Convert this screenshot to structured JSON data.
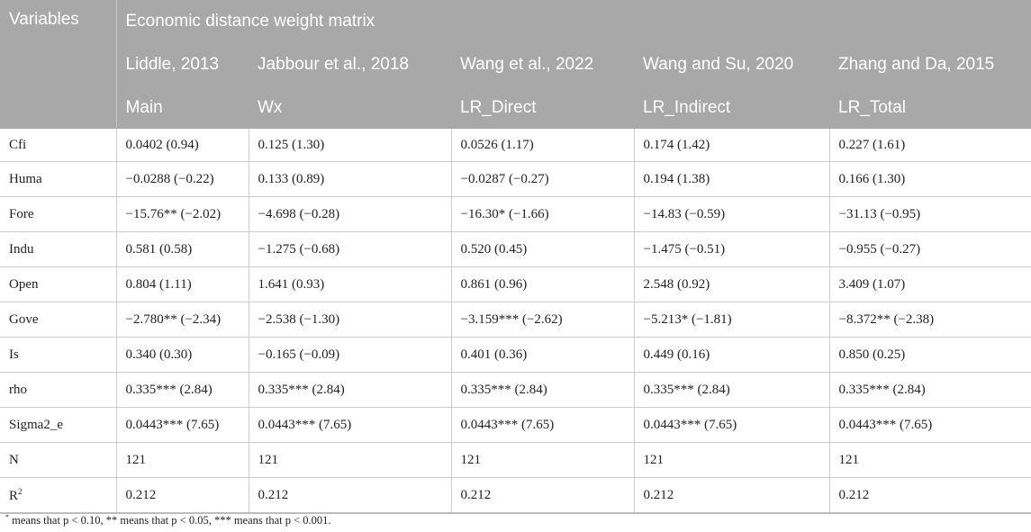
{
  "header": {
    "variables_label": "Variables",
    "group_label": "Economic distance weight matrix",
    "columns": [
      {
        "citation": "Liddle, 2013",
        "label": "Main"
      },
      {
        "citation": "Jabbour et al., 2018",
        "label": "Wx"
      },
      {
        "citation": "Wang et al., 2022",
        "label": "LR_Direct"
      },
      {
        "citation": "Wang and Su, 2020",
        "label": "LR_Indirect"
      },
      {
        "citation": "Zhang and Da, 2015",
        "label": "LR_Total"
      }
    ]
  },
  "rows": [
    {
      "var": "Cfi",
      "cells": [
        "0.0402 (0.94)",
        "0.125 (1.30)",
        "0.0526 (1.17)",
        "0.174 (1.42)",
        "0.227 (1.61)"
      ]
    },
    {
      "var": "Huma",
      "cells": [
        "−0.0288 (−0.22)",
        "0.133 (0.89)",
        "−0.0287 (−0.27)",
        "0.194 (1.38)",
        "0.166 (1.30)"
      ]
    },
    {
      "var": "Fore",
      "cells": [
        "−15.76** (−2.02)",
        "−4.698 (−0.28)",
        "−16.30* (−1.66)",
        "−14.83 (−0.59)",
        "−31.13 (−0.95)"
      ]
    },
    {
      "var": "Indu",
      "cells": [
        "0.581 (0.58)",
        "−1.275 (−0.68)",
        "0.520 (0.45)",
        "−1.475 (−0.51)",
        "−0.955 (−0.27)"
      ]
    },
    {
      "var": "Open",
      "cells": [
        "0.804 (1.11)",
        "1.641 (0.93)",
        "0.861 (0.96)",
        "2.548 (0.92)",
        "3.409 (1.07)"
      ]
    },
    {
      "var": "Gove",
      "cells": [
        "−2.780** (−2.34)",
        "−2.538 (−1.30)",
        "−3.159*** (−2.62)",
        "−5.213* (−1.81)",
        "−8.372** (−2.38)"
      ]
    },
    {
      "var": "Is",
      "cells": [
        "0.340 (0.30)",
        "−0.165 (−0.09)",
        "0.401 (0.36)",
        "0.449 (0.16)",
        "0.850 (0.25)"
      ]
    },
    {
      "var": "rho",
      "cells": [
        "0.335*** (2.84)",
        "0.335*** (2.84)",
        "0.335*** (2.84)",
        "0.335*** (2.84)",
        "0.335*** (2.84)"
      ]
    },
    {
      "var": "Sigma2_e",
      "cells": [
        "0.0443*** (7.65)",
        "0.0443*** (7.65)",
        "0.0443*** (7.65)",
        "0.0443*** (7.65)",
        "0.0443*** (7.65)"
      ]
    },
    {
      "var": "N",
      "cells": [
        "121",
        "121",
        "121",
        "121",
        "121"
      ]
    },
    {
      "var": "R",
      "var_sup": "2",
      "cells": [
        "0.212",
        "0.212",
        "0.212",
        "0.212",
        "0.212"
      ]
    }
  ],
  "footnote": {
    "star": "*",
    "text": " means that p < 0.10, ** means that p < 0.05, *** means that p < 0.001."
  }
}
